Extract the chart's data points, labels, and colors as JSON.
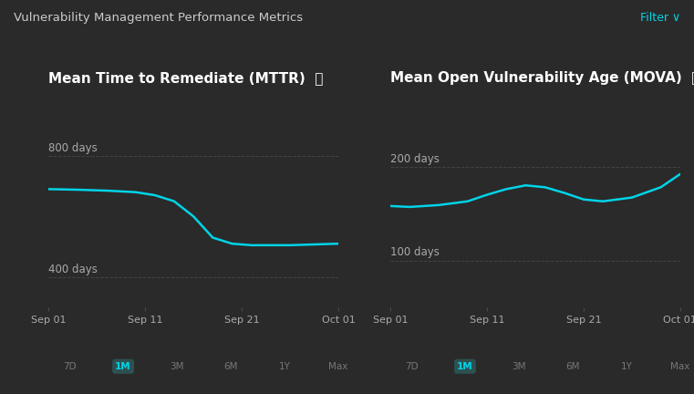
{
  "bg_color": "#2a2a2a",
  "title": "Vulnerability Management Performance Metrics",
  "title_color": "#cccccc",
  "title_fontsize": 9.5,
  "filter_text": "Filter ∨",
  "filter_color": "#00d4e8",
  "left_title": "Mean Time to Remediate (MTTR)  ⓘ",
  "right_title": "Mean Open Vulnerability Age (MOVA)  ⓘ",
  "subtitle_color": "#ffffff",
  "subtitle_fontsize": 11,
  "x_labels": [
    "Sep 01",
    "Sep 11",
    "Sep 21",
    "Oct 01"
  ],
  "x_ticks": [
    0,
    10,
    20,
    30
  ],
  "left_ylim": [
    300,
    950
  ],
  "left_ytick_vals": [
    400,
    800
  ],
  "left_y_upper_label": "800 days",
  "left_y_lower_label": "400 days",
  "right_ylim": [
    50,
    260
  ],
  "right_ytick_vals": [
    100,
    200
  ],
  "right_y_upper_label": "200 days",
  "right_y_lower_label": "100 days",
  "left_x": [
    0,
    3,
    6,
    9,
    11,
    13,
    15,
    17,
    19,
    21,
    23,
    25,
    27,
    30
  ],
  "left_y": [
    690,
    688,
    685,
    680,
    670,
    650,
    600,
    530,
    510,
    505,
    505,
    505,
    507,
    510
  ],
  "right_x": [
    0,
    2,
    5,
    8,
    10,
    12,
    14,
    16,
    18,
    20,
    22,
    25,
    28,
    30
  ],
  "right_y": [
    158,
    157,
    159,
    163,
    170,
    176,
    180,
    178,
    172,
    165,
    163,
    167,
    178,
    192
  ],
  "line_color": "#00d4e8",
  "line_width": 1.8,
  "grid_color": "#4a4a4a",
  "grid_style": "--",
  "grid_lw": 0.7,
  "grid_alpha": 0.8,
  "tick_color": "#aaaaaa",
  "tick_fontsize": 8,
  "label_fontsize": 8.5,
  "tab_labels": [
    "7D",
    "1M",
    "3M",
    "6M",
    "1Y",
    "Max"
  ],
  "tab_active": "1M",
  "tab_active_bg": "#2d5050",
  "tab_active_color": "#00d4e8",
  "tab_inactive_color": "#777777",
  "tab_fontsize": 7.5
}
